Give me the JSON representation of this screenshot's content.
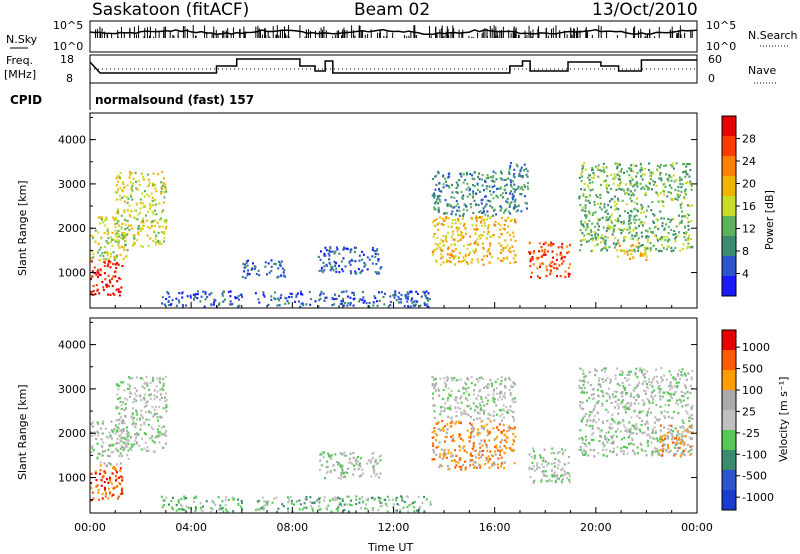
{
  "header": {
    "station": "Saskatoon (fitACF)",
    "beam": "Beam 02",
    "date": "13/Oct/2010"
  },
  "nsky_panel": {
    "left_label": "N.Sky",
    "right_label": "N.Search",
    "left_ticks": [
      "10^5",
      "10^0"
    ],
    "right_ticks": [
      "10^5",
      "10^0"
    ]
  },
  "freq_panel": {
    "left_label_1": "Freq.",
    "left_label_2": "[MHz]",
    "left_ticks": [
      "18",
      "8"
    ],
    "right_label": "Nave",
    "right_ticks": [
      "60",
      "0"
    ]
  },
  "cpid": {
    "label": "CPID",
    "value": "normalsound (fast) 157"
  },
  "colors": {
    "power": [
      "#1a1aff",
      "#2d55cc",
      "#3a8c6e",
      "#5cb35c",
      "#c8dc28",
      "#f0b400",
      "#ff8000",
      "#ff3c00",
      "#e60000"
    ],
    "velocity": [
      "#e60000",
      "#ff5a00",
      "#ff9c00",
      "#aaaaaa",
      "#c0c0c0",
      "#55c855",
      "#3a8c6e",
      "#2d55cc",
      "#1a3ccc"
    ]
  },
  "chart_data": [
    {
      "type": "heatmap",
      "title": "Power",
      "ylabel": "Slant Range [km]",
      "ylim": [
        200,
        4600
      ],
      "yticks": [
        "1000",
        "2000",
        "3000",
        "4000"
      ],
      "xlim": [
        0,
        24
      ],
      "xticks": [
        "00:00",
        "04:00",
        "08:00",
        "12:00",
        "16:00",
        "20:00",
        "00:00"
      ],
      "colorbar": {
        "label": "Power [dB]",
        "ticks": [
          "4",
          "8",
          "12",
          "16",
          "20",
          "24",
          "28"
        ]
      },
      "regions": [
        {
          "t": [
            0.0,
            1.3
          ],
          "r": [
            500,
            1300
          ],
          "level": 8
        },
        {
          "t": [
            0.0,
            1.5
          ],
          "r": [
            1300,
            2300
          ],
          "level": 4
        },
        {
          "t": [
            1.0,
            3.0
          ],
          "r": [
            1600,
            3300
          ],
          "level": 4
        },
        {
          "t": [
            2.8,
            6.0
          ],
          "r": [
            250,
            600
          ],
          "level": 1
        },
        {
          "t": [
            6.0,
            7.7
          ],
          "r": [
            900,
            1300
          ],
          "level": 1
        },
        {
          "t": [
            6.5,
            13.5
          ],
          "r": [
            250,
            600
          ],
          "level": 1
        },
        {
          "t": [
            9.0,
            11.5
          ],
          "r": [
            1000,
            1600
          ],
          "level": 1
        },
        {
          "t": [
            13.5,
            16.8
          ],
          "r": [
            1200,
            2300
          ],
          "level": 5
        },
        {
          "t": [
            13.5,
            16.8
          ],
          "r": [
            2300,
            3300
          ],
          "level": 2
        },
        {
          "t": [
            16.5,
            17.3
          ],
          "r": [
            2400,
            3500
          ],
          "level": 2
        },
        {
          "t": [
            17.3,
            19.0
          ],
          "r": [
            900,
            1700
          ],
          "level": 7
        },
        {
          "t": [
            19.3,
            23.8
          ],
          "r": [
            1500,
            3500
          ],
          "level": 3
        },
        {
          "t": [
            20.8,
            22.0
          ],
          "r": [
            1300,
            1700
          ],
          "level": 5
        }
      ]
    },
    {
      "type": "heatmap",
      "title": "Velocity",
      "ylabel": "Slant Range [km]",
      "ylim": [
        200,
        4600
      ],
      "yticks": [
        "1000",
        "2000",
        "3000",
        "4000"
      ],
      "xlim": [
        0,
        24
      ],
      "xticks": [
        "00:00",
        "04:00",
        "08:00",
        "12:00",
        "16:00",
        "20:00",
        "00:00"
      ],
      "xlabel": "Time UT",
      "colorbar": {
        "label": "Velocity [m s⁻¹]",
        "ticks": [
          "1000",
          "500",
          "100",
          "25",
          "-25",
          "-100",
          "-500",
          "-1000"
        ]
      },
      "regions": [
        {
          "t": [
            0.0,
            1.3
          ],
          "r": [
            500,
            1300
          ],
          "level": 1
        },
        {
          "t": [
            0.0,
            1.5
          ],
          "r": [
            1300,
            2300
          ],
          "level": 4
        },
        {
          "t": [
            1.0,
            3.0
          ],
          "r": [
            1600,
            3300
          ],
          "level": 4
        },
        {
          "t": [
            2.8,
            6.0
          ],
          "r": [
            250,
            600
          ],
          "level": 5
        },
        {
          "t": [
            6.5,
            13.5
          ],
          "r": [
            250,
            600
          ],
          "level": 5
        },
        {
          "t": [
            9.0,
            11.5
          ],
          "r": [
            1000,
            1600
          ],
          "level": 4
        },
        {
          "t": [
            13.5,
            16.8
          ],
          "r": [
            1200,
            2300
          ],
          "level": 2
        },
        {
          "t": [
            13.5,
            16.8
          ],
          "r": [
            2300,
            3300
          ],
          "level": 4
        },
        {
          "t": [
            17.3,
            19.0
          ],
          "r": [
            900,
            1700
          ],
          "level": 4
        },
        {
          "t": [
            19.3,
            23.8
          ],
          "r": [
            1500,
            3500
          ],
          "level": 4
        },
        {
          "t": [
            22.5,
            23.8
          ],
          "r": [
            1500,
            2200
          ],
          "level": 2
        }
      ]
    }
  ]
}
